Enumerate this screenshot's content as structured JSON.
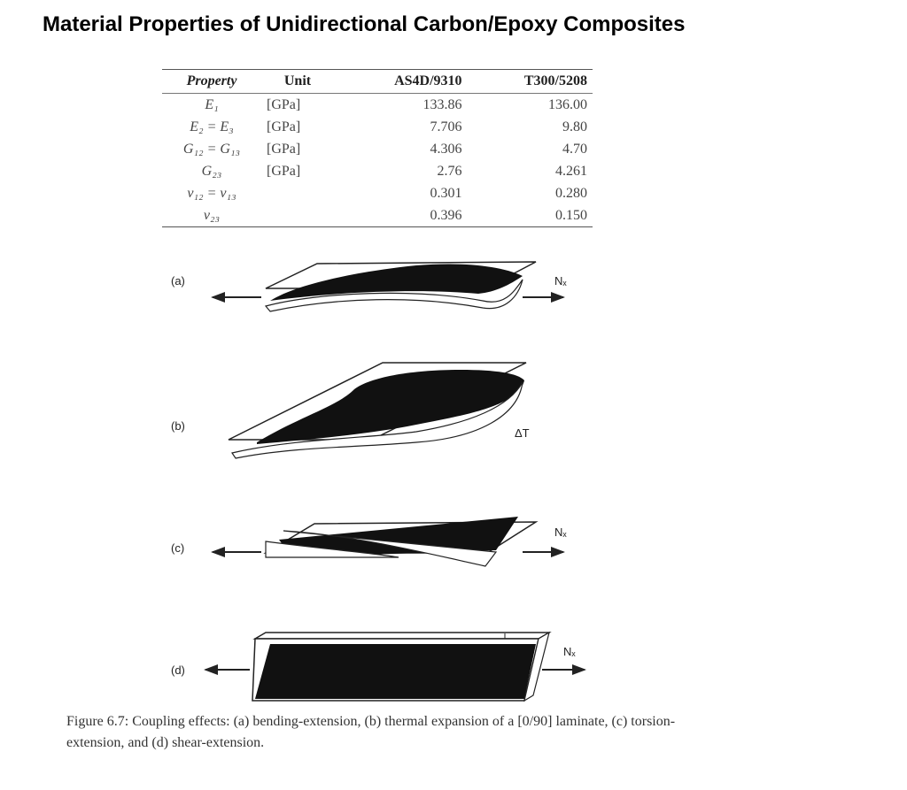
{
  "title": "Material Properties of Unidirectional Carbon/Epoxy Composites",
  "table": {
    "header": [
      "Property",
      "Unit",
      "AS4D/9310",
      "T300/5208"
    ],
    "rows": [
      [
        "E₁",
        "[GPa]",
        "133.86",
        "136.00"
      ],
      [
        "E₂ = E₃",
        "[GPa]",
        "7.706",
        "9.80"
      ],
      [
        "G₁₂ = G₁₃",
        "[GPa]",
        "4.306",
        "4.70"
      ],
      [
        "G₂₃",
        "[GPa]",
        "2.76",
        "4.261"
      ],
      [
        "ν₁₂ = ν₁₃",
        null,
        "0.301",
        "0.280"
      ],
      [
        "ν₂₃",
        null,
        "0.396",
        "0.150"
      ]
    ]
  },
  "figure": {
    "panels": [
      "(a)",
      "(b)",
      "(c)",
      "(d)"
    ],
    "force_label": "Nₓ",
    "temperature_label": "ΔT",
    "caption": "Figure 6.7: Coupling effects: (a) bending-extension, (b) thermal expansion of a [0/90] laminate, (c) torsion-extension, and (d) shear-extension."
  }
}
